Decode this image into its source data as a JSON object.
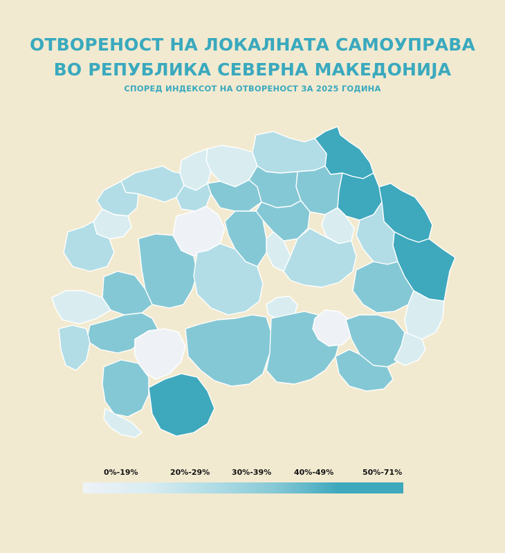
{
  "header": {
    "title_line1": "ОТВОРЕНОСТ НА ЛОКАЛНАТА САМОУПРАВА",
    "title_line2": "ВО РЕПУБЛИКА СЕВЕРНА МАКЕДОНИЈА",
    "subtitle": "СПОРЕД ИНДЕКСОТ НА ОТВОРЕНОСТ ЗА 2025 ГОДИНА"
  },
  "colors": {
    "background": "#f2ead0",
    "title": "#3aa9be",
    "border": "#ffffff",
    "scale": [
      "#eef2f7",
      "#d9edf1",
      "#b2dde6",
      "#85c8d5",
      "#3ea8bd"
    ]
  },
  "legend": {
    "items": [
      {
        "label": "0%-19%",
        "color": "#eef2f7"
      },
      {
        "label": "20%-29%",
        "color": "#d9edf1"
      },
      {
        "label": "30%-39%",
        "color": "#b2dde6"
      },
      {
        "label": "40%-49%",
        "color": "#85c8d5"
      },
      {
        "label": "50%-71%",
        "color": "#3ea8bd"
      }
    ]
  },
  "map": {
    "regions": [
      {
        "name": "region-northeast-top",
        "c": 4
      },
      {
        "name": "region-east-upper",
        "c": 4
      },
      {
        "name": "region-east-mid",
        "c": 4
      },
      {
        "name": "region-east-far",
        "c": 4
      },
      {
        "name": "region-north-center",
        "c": 1
      },
      {
        "name": "region-north-1",
        "c": 2
      },
      {
        "name": "region-north-2",
        "c": 1
      },
      {
        "name": "region-skopje-core",
        "c": 0
      },
      {
        "name": "region-skopje-west",
        "c": 2
      },
      {
        "name": "region-skopje-east",
        "c": 3
      },
      {
        "name": "region-center-north",
        "c": 3
      },
      {
        "name": "region-center-white",
        "c": 0
      },
      {
        "name": "region-center-small",
        "c": 1
      },
      {
        "name": "region-center-east",
        "c": 3
      },
      {
        "name": "region-west-north",
        "c": 2
      },
      {
        "name": "region-west-1",
        "c": 2
      },
      {
        "name": "region-west-2",
        "c": 2
      },
      {
        "name": "region-west-3",
        "c": 3
      },
      {
        "name": "region-west-4",
        "c": 3
      },
      {
        "name": "region-west-small",
        "c": 1
      },
      {
        "name": "region-center-big",
        "c": 2
      },
      {
        "name": "region-center-mid",
        "c": 2
      },
      {
        "name": "region-southwest-1",
        "c": 3
      },
      {
        "name": "region-southwest-white",
        "c": 0
      },
      {
        "name": "region-southwest-2",
        "c": 3
      },
      {
        "name": "region-south-1",
        "c": 4
      },
      {
        "name": "region-south-2",
        "c": 3
      },
      {
        "name": "region-south-center",
        "c": 3
      },
      {
        "name": "region-southeast-white",
        "c": 0
      },
      {
        "name": "region-southeast-1",
        "c": 3
      },
      {
        "name": "region-southeast-2",
        "c": 3
      },
      {
        "name": "region-southeast-3",
        "c": 3
      },
      {
        "name": "region-east-south",
        "c": 1
      },
      {
        "name": "region-ohrid",
        "c": 2
      },
      {
        "name": "region-prespa",
        "c": 1
      },
      {
        "name": "region-center-east-white",
        "c": 1
      },
      {
        "name": "region-east-small-white",
        "c": 1
      }
    ]
  }
}
